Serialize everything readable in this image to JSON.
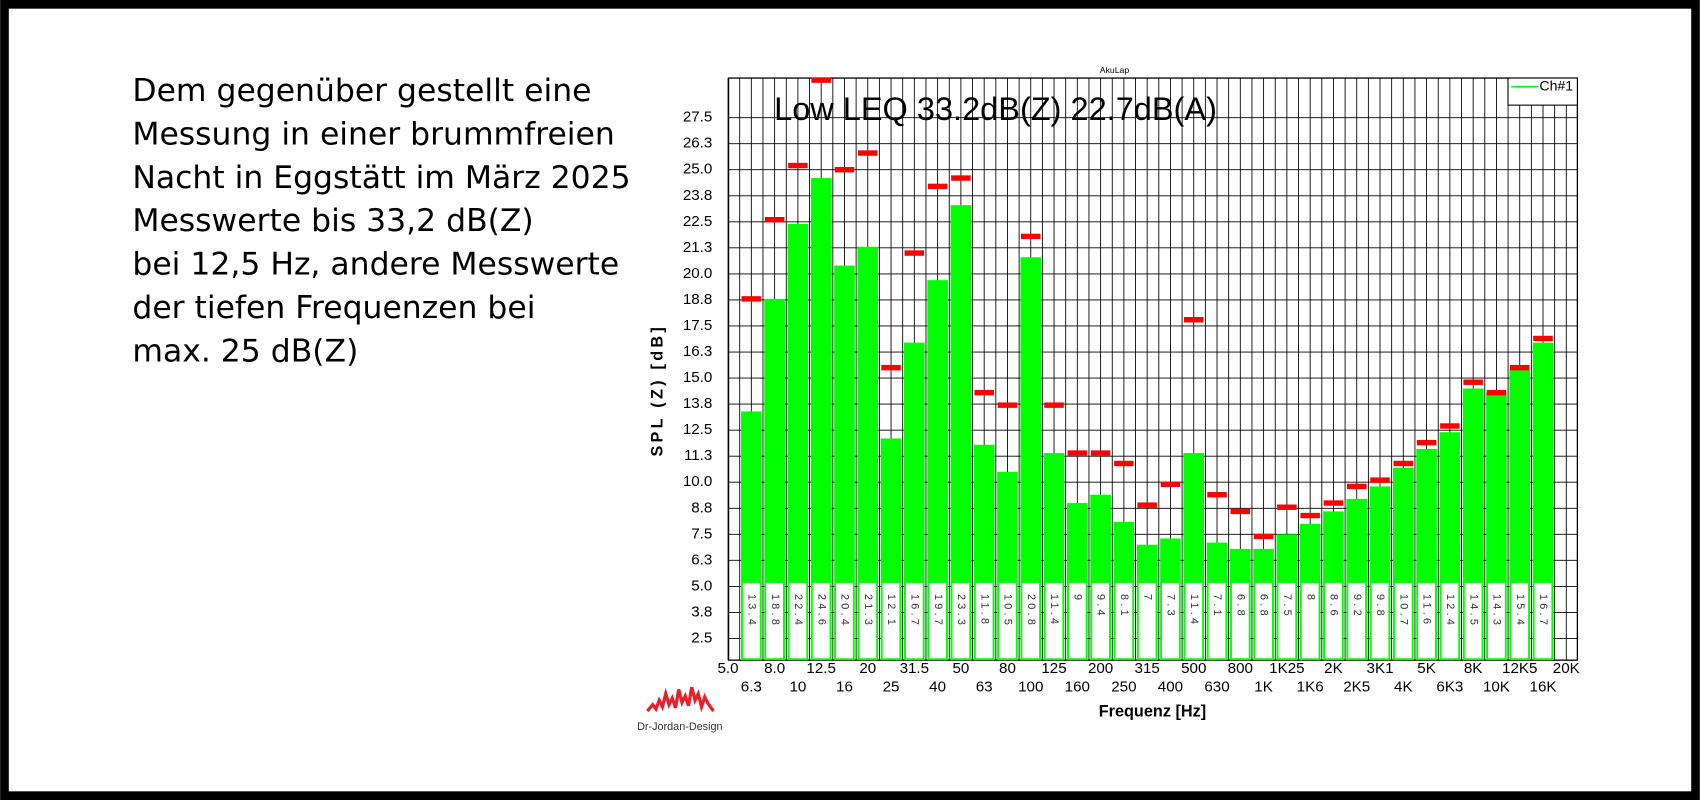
{
  "slide_text": {
    "lines": [
      "Dem gegenüber gestellt eine",
      "Messung in einer brummfreien",
      "Nacht in Eggstätt im März 2025",
      "Messwerte bis 33,2 dB(Z)",
      "bei 12,5 Hz, andere Messwerte",
      "der tiefen Frequenzen bei",
      "max. 25 dB(Z)"
    ],
    "logo": "Dr-Jordan-Design"
  },
  "chart_data": {
    "type": "bar",
    "title": "AkuLap",
    "annotation": "Low LEQ 33.2dB(Z) 22.7dB(A)",
    "x_label": "Frequenz [Hz]",
    "y_label": "SPL (Z) [dB]",
    "categories": [
      "5.0",
      "6.3",
      "8.0",
      "10",
      "12.5",
      "16",
      "20",
      "25",
      "31.5",
      "40",
      "50",
      "63",
      "80",
      "100",
      "125",
      "160",
      "200",
      "250",
      "315",
      "400",
      "500",
      "630",
      "800",
      "1K",
      "1K25",
      "1K6",
      "2K",
      "2K5",
      "3K1",
      "4K",
      "5K",
      "6K3",
      "8K",
      "10K",
      "12K5",
      "16K",
      "20K"
    ],
    "series": [
      {
        "name": "Ch#1",
        "color": "#00ff00",
        "values": [
          null,
          13.4,
          18.8,
          22.4,
          24.6,
          20.4,
          21.3,
          12.1,
          16.7,
          19.7,
          23.3,
          11.8,
          10.5,
          20.8,
          11.4,
          9.0,
          9.4,
          8.1,
          7.0,
          7.3,
          11.4,
          7.1,
          6.8,
          6.8,
          7.5,
          8.0,
          8.6,
          9.2,
          9.8,
          10.7,
          11.6,
          12.4,
          14.5,
          14.3,
          15.4,
          16.7,
          null
        ]
      }
    ],
    "max_values": [
      null,
      18.8,
      22.6,
      25.2,
      29.3,
      25.0,
      25.8,
      15.5,
      21.0,
      24.2,
      24.6,
      14.3,
      13.7,
      21.8,
      13.7,
      11.4,
      11.4,
      10.9,
      8.9,
      9.9,
      17.8,
      9.4,
      8.6,
      7.4,
      8.8,
      8.4,
      9.0,
      9.8,
      10.1,
      10.9,
      11.9,
      12.7,
      14.8,
      14.3,
      15.5,
      16.9,
      null
    ],
    "max_color": "#ff0000",
    "ylim": [
      1.46,
      29.4
    ],
    "yticks": [
      2.5,
      {
        "value": 3.75,
        "label": "3.8"
      },
      {
        "value": 5,
        "label": "5.0"
      },
      {
        "value": 6.25,
        "label": "6.3"
      },
      7.5,
      {
        "value": 8.75,
        "label": "8.8"
      },
      {
        "value": 10,
        "label": "10.0"
      },
      {
        "value": 11.25,
        "label": "11.3"
      },
      12.5,
      {
        "value": 13.75,
        "label": "13.8"
      },
      {
        "value": 15,
        "label": "15.0"
      },
      {
        "value": 16.25,
        "label": "16.3"
      },
      17.5,
      {
        "value": 18.75,
        "label": "18.8"
      },
      {
        "value": 20,
        "label": "20.0"
      },
      {
        "value": 21.25,
        "label": "21.3"
      },
      22.5,
      {
        "value": 23.75,
        "label": "23.8"
      },
      {
        "value": 25,
        "label": "25.0"
      },
      {
        "value": 26.25,
        "label": "26.3"
      },
      27.5
    ],
    "grid": true,
    "legend": "upper right"
  }
}
